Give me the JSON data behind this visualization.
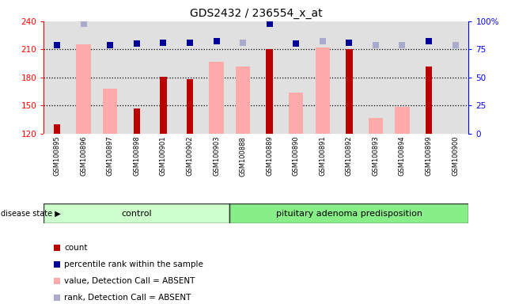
{
  "title": "GDS2432 / 236554_x_at",
  "samples": [
    "GSM100895",
    "GSM100896",
    "GSM100897",
    "GSM100898",
    "GSM100901",
    "GSM100902",
    "GSM100903",
    "GSM100888",
    "GSM100889",
    "GSM100890",
    "GSM100891",
    "GSM100892",
    "GSM100893",
    "GSM100894",
    "GSM100899",
    "GSM100900"
  ],
  "count_values": [
    130,
    null,
    null,
    147,
    181,
    178,
    null,
    null,
    210,
    null,
    null,
    210,
    null,
    null,
    192,
    120
  ],
  "value_absent": [
    null,
    215,
    168,
    null,
    null,
    null,
    197,
    192,
    null,
    164,
    212,
    null,
    137,
    149,
    null,
    null
  ],
  "percentile_dark_pct": [
    79,
    null,
    79,
    80,
    81,
    81,
    82,
    null,
    98,
    80,
    null,
    81,
    null,
    null,
    82,
    null
  ],
  "percentile_light_pct": [
    null,
    98,
    null,
    null,
    null,
    null,
    null,
    81,
    null,
    null,
    82,
    null,
    79,
    79,
    null,
    79
  ],
  "ylim": [
    120,
    240
  ],
  "yticks_left": [
    120,
    150,
    180,
    210,
    240
  ],
  "yticks_right": [
    0,
    25,
    50,
    75,
    100
  ],
  "right_ylim": [
    0,
    100
  ],
  "bar_color_count": "#bb0000",
  "bar_color_absent": "#ffaaaa",
  "dot_color_dark": "#000099",
  "dot_color_light": "#aaaacc",
  "group_colors": {
    "control": "#ccffcc",
    "pituitary adenoma predisposition": "#88ee88"
  },
  "control_count": 7,
  "n_samples": 16,
  "bg_color": "#e0e0e0",
  "grid_color": "#aaaaaa"
}
